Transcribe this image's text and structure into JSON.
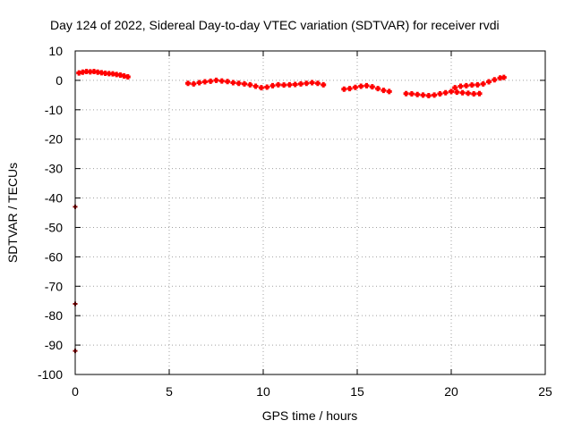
{
  "chart_data": {
    "type": "scatter",
    "title": "Day 124 of 2022, Sidereal Day-to-day VTEC variation (SDTVAR) for receiver rvdi",
    "xlabel": "GPS time / hours",
    "ylabel": "SDTVAR / TECUs",
    "xlim": [
      0,
      25
    ],
    "ylim": [
      -100,
      10
    ],
    "x_ticks": [
      0,
      5,
      10,
      15,
      20,
      25
    ],
    "y_ticks": [
      10,
      0,
      -10,
      -20,
      -30,
      -40,
      -50,
      -60,
      -70,
      -80,
      -90,
      -100
    ],
    "grid": true,
    "legend": "none",
    "color": "#ff0000",
    "outlier_color": "#8b0000",
    "series": [
      {
        "x": [
          0.2,
          0.4,
          0.6,
          0.8,
          1.0,
          1.2,
          1.4,
          1.6,
          1.8,
          2.0,
          2.2,
          2.4,
          2.6,
          2.8,
          6.0,
          6.3,
          6.6,
          6.9,
          7.2,
          7.5,
          7.8,
          8.1,
          8.4,
          8.7,
          9.0,
          9.3,
          9.6,
          9.9,
          10.2,
          10.5,
          10.8,
          11.1,
          11.4,
          11.7,
          12.0,
          12.3,
          12.6,
          12.9,
          13.2,
          14.3,
          14.6,
          14.9,
          15.2,
          15.5,
          15.8,
          16.1,
          16.4,
          16.7,
          17.6,
          17.9,
          18.2,
          18.5,
          18.8,
          19.1,
          19.4,
          19.7,
          20.0,
          20.3,
          20.6,
          20.9,
          21.2,
          21.5,
          20.2,
          20.5,
          20.8,
          21.1,
          21.4,
          21.7,
          22.0,
          22.3,
          22.6,
          22.8
        ],
        "y": [
          2.5,
          2.8,
          3.0,
          2.9,
          3.0,
          2.8,
          2.6,
          2.4,
          2.3,
          2.2,
          2.0,
          1.8,
          1.5,
          1.2,
          -1.0,
          -1.2,
          -0.8,
          -0.5,
          -0.3,
          0.0,
          -0.2,
          -0.4,
          -0.8,
          -1.0,
          -1.2,
          -1.5,
          -2.0,
          -2.5,
          -2.3,
          -1.8,
          -1.5,
          -1.6,
          -1.5,
          -1.4,
          -1.2,
          -1.0,
          -0.8,
          -1.0,
          -1.5,
          -3.0,
          -2.8,
          -2.4,
          -2.0,
          -1.8,
          -2.2,
          -2.8,
          -3.4,
          -3.8,
          -4.5,
          -4.6,
          -4.8,
          -5.0,
          -5.2,
          -5.0,
          -4.6,
          -4.2,
          -3.8,
          -4.0,
          -4.2,
          -4.4,
          -4.6,
          -4.5,
          -2.5,
          -2.0,
          -1.8,
          -1.6,
          -1.5,
          -1.2,
          -0.5,
          0.2,
          0.8,
          1.0
        ]
      },
      {
        "x": [
          0.0,
          0.0,
          0.0
        ],
        "y": [
          -43,
          -76,
          -92
        ]
      }
    ]
  }
}
